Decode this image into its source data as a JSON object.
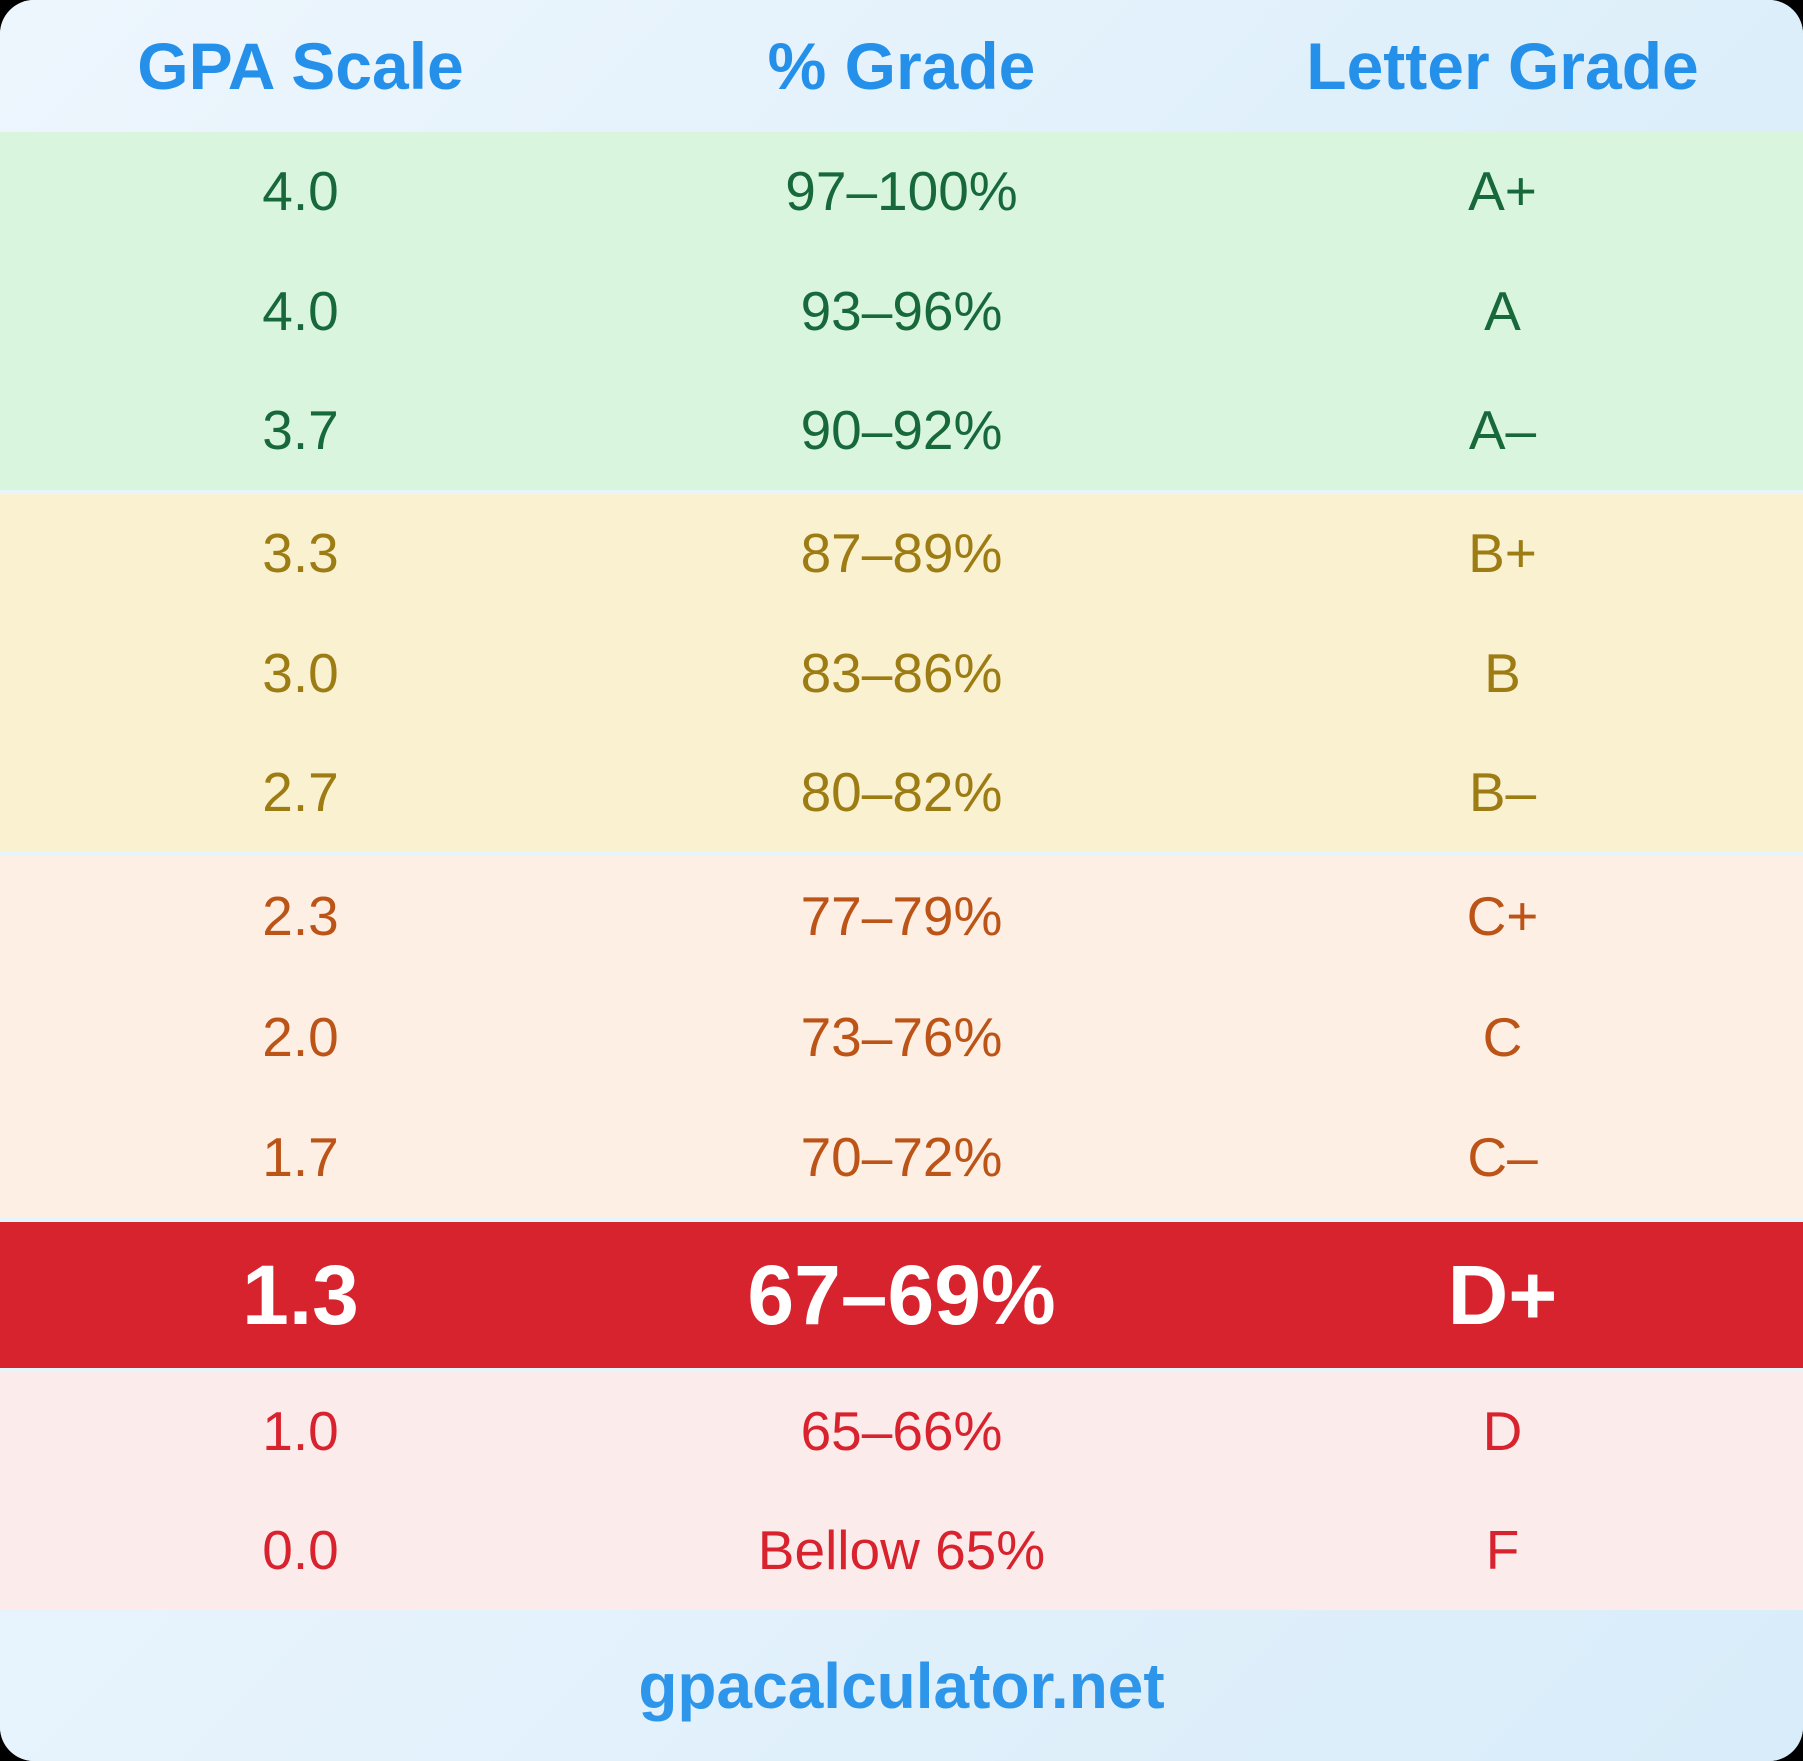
{
  "header": {
    "columns": [
      "GPA Scale",
      "% Grade",
      "Letter Grade"
    ]
  },
  "sections": [
    {
      "name": "a-grades",
      "bg": "#d9f5dd",
      "fg": "#17693b",
      "rows": [
        [
          "4.0",
          "97–100%",
          "A+"
        ],
        [
          "4.0",
          "93–96%",
          "A"
        ],
        [
          "3.7",
          "90–92%",
          "A–"
        ]
      ]
    },
    {
      "name": "b-grades",
      "bg": "#faf1d0",
      "fg": "#9d7c13",
      "rows": [
        [
          "3.3",
          "87–89%",
          "B+"
        ],
        [
          "3.0",
          "83–86%",
          "B"
        ],
        [
          "2.7",
          "80–82%",
          "B–"
        ]
      ]
    },
    {
      "name": "c-grades",
      "bg": "#fdefe4",
      "fg": "#bc5417",
      "rows": [
        [
          "2.3",
          "77–79%",
          "C+"
        ],
        [
          "2.0",
          "73–76%",
          "C"
        ],
        [
          "1.7",
          "70–72%",
          "C–"
        ]
      ]
    },
    {
      "name": "d-plus-highlighted",
      "bg": "#d7232e",
      "fg": "#ffffff",
      "rows": [
        [
          "1.3",
          "67–69%",
          "D+"
        ]
      ]
    },
    {
      "name": "d-f-grades",
      "bg": "#fcebeb",
      "fg": "#d8232e",
      "rows": [
        [
          "1.0",
          "65–66%",
          "D"
        ],
        [
          "0.0",
          "Bellow 65%",
          "F"
        ]
      ]
    }
  ],
  "footer": {
    "site": "gpacalculator.net"
  },
  "colors": {
    "header_text": "#2590e9",
    "footer_text": "#2e96ea",
    "separator": "#e6f4fb",
    "highlight_bg": "#d7232e",
    "page_bg": "#000000"
  }
}
